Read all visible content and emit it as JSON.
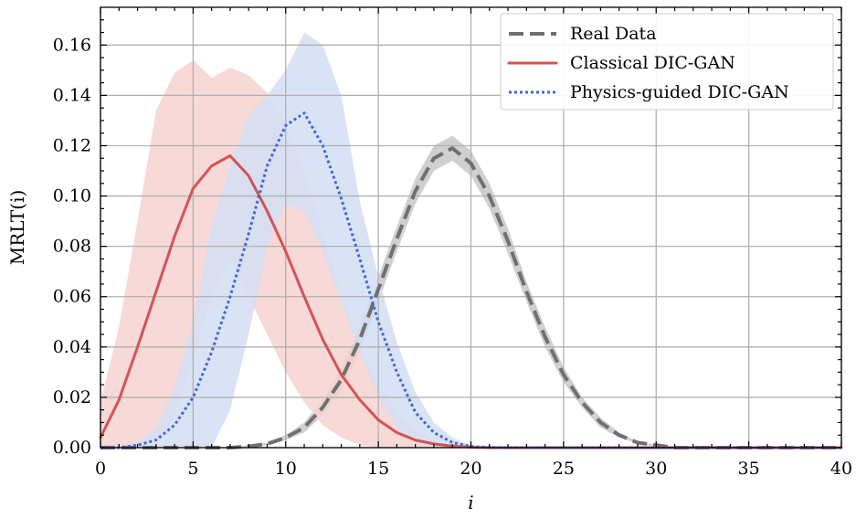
{
  "chart_data": {
    "type": "line",
    "xlabel": "i",
    "ylabel": "MRLT(i)",
    "xlim": [
      0,
      40
    ],
    "ylim": [
      0,
      0.175
    ],
    "xticks": [
      0,
      5,
      10,
      15,
      20,
      25,
      30,
      35,
      40
    ],
    "xtick_labels": [
      "0",
      "5",
      "10",
      "15",
      "20",
      "25",
      "30",
      "35",
      "40"
    ],
    "yticks": [
      0,
      0.02,
      0.04,
      0.06,
      0.08,
      0.1,
      0.12,
      0.14,
      0.16
    ],
    "ytick_labels": [
      "0.00",
      "0.02",
      "0.04",
      "0.06",
      "0.08",
      "0.10",
      "0.12",
      "0.14",
      "0.16"
    ],
    "grid": true,
    "legend_position": "top-right",
    "x": [
      0,
      1,
      2,
      3,
      4,
      5,
      6,
      7,
      8,
      9,
      10,
      11,
      12,
      13,
      14,
      15,
      16,
      17,
      18,
      19,
      20,
      21,
      22,
      23,
      24,
      25,
      26,
      27,
      28,
      29,
      30,
      31,
      32,
      33,
      34,
      35,
      36,
      37,
      38,
      39,
      40
    ],
    "series": [
      {
        "name": "Real Data",
        "color": "#707070",
        "style": "dashed",
        "band_color": "#c8c8c8",
        "values": [
          0,
          0,
          0,
          0,
          0,
          0,
          0,
          0,
          0.0005,
          0.0015,
          0.004,
          0.008,
          0.016,
          0.027,
          0.043,
          0.063,
          0.083,
          0.102,
          0.115,
          0.119,
          0.113,
          0.1,
          0.082,
          0.062,
          0.044,
          0.029,
          0.018,
          0.01,
          0.005,
          0.002,
          0.001,
          0,
          0,
          0,
          0,
          0,
          0,
          0,
          0,
          0,
          0
        ],
        "lower": [
          0,
          0,
          0,
          0,
          0,
          0,
          0,
          0,
          0.0003,
          0.001,
          0.003,
          0.006,
          0.013,
          0.023,
          0.038,
          0.058,
          0.078,
          0.097,
          0.11,
          0.114,
          0.108,
          0.095,
          0.077,
          0.058,
          0.04,
          0.026,
          0.016,
          0.008,
          0.004,
          0.0015,
          0.0005,
          0,
          0,
          0,
          0,
          0,
          0,
          0,
          0,
          0,
          0
        ],
        "upper": [
          0,
          0,
          0,
          0,
          0,
          0,
          0,
          0,
          0.001,
          0.002,
          0.005,
          0.01,
          0.019,
          0.031,
          0.048,
          0.068,
          0.088,
          0.107,
          0.12,
          0.124,
          0.118,
          0.105,
          0.087,
          0.066,
          0.048,
          0.032,
          0.02,
          0.012,
          0.006,
          0.0025,
          0.0012,
          0,
          0,
          0,
          0,
          0,
          0,
          0,
          0,
          0,
          0
        ]
      },
      {
        "name": "Classical DIC-GAN",
        "color": "#d25454",
        "style": "solid",
        "band_color": "#f6d2d0",
        "values": [
          0.004,
          0.019,
          0.04,
          0.062,
          0.084,
          0.103,
          0.112,
          0.116,
          0.108,
          0.094,
          0.078,
          0.06,
          0.043,
          0.029,
          0.019,
          0.011,
          0.006,
          0.003,
          0.0015,
          0.0006,
          0.0002,
          0,
          0,
          0,
          0,
          0,
          0,
          0,
          0,
          0,
          0,
          0,
          0,
          0,
          0,
          0,
          0,
          0,
          0,
          0,
          0
        ],
        "lower": [
          0,
          0,
          0,
          0.003,
          0.012,
          0.035,
          0.06,
          0.075,
          0.06,
          0.045,
          0.03,
          0.018,
          0.009,
          0.004,
          0.001,
          0,
          0,
          0,
          0,
          0,
          0,
          0,
          0,
          0,
          0,
          0,
          0,
          0,
          0,
          0,
          0,
          0,
          0,
          0,
          0,
          0,
          0,
          0,
          0,
          0,
          0
        ],
        "upper": [
          0.018,
          0.048,
          0.09,
          0.134,
          0.149,
          0.154,
          0.147,
          0.151,
          0.148,
          0.141,
          0.128,
          0.11,
          0.085,
          0.06,
          0.04,
          0.025,
          0.014,
          0.007,
          0.003,
          0.001,
          0.0003,
          0,
          0,
          0,
          0,
          0,
          0,
          0,
          0,
          0,
          0,
          0,
          0,
          0,
          0,
          0,
          0,
          0,
          0,
          0,
          0
        ]
      },
      {
        "name": "Physics-guided DIC-GAN",
        "color": "#4169d1",
        "style": "dotted",
        "band_color": "#d3def4",
        "values": [
          0,
          0,
          0.001,
          0.003,
          0.009,
          0.02,
          0.038,
          0.06,
          0.085,
          0.112,
          0.128,
          0.133,
          0.12,
          0.099,
          0.075,
          0.05,
          0.03,
          0.014,
          0.006,
          0.002,
          0.0005,
          0.0001,
          0,
          0,
          0,
          0,
          0,
          0,
          0,
          0,
          0,
          0,
          0,
          0,
          0,
          0,
          0,
          0,
          0,
          0,
          0
        ],
        "lower": [
          0,
          0,
          0,
          0,
          0,
          0,
          0,
          0.015,
          0.045,
          0.08,
          0.097,
          0.094,
          0.078,
          0.058,
          0.038,
          0.02,
          0.008,
          0.002,
          0,
          0,
          0,
          0,
          0,
          0,
          0,
          0,
          0,
          0,
          0,
          0,
          0,
          0,
          0,
          0,
          0,
          0,
          0,
          0,
          0,
          0,
          0
        ],
        "upper": [
          0,
          0,
          0.002,
          0.008,
          0.024,
          0.05,
          0.088,
          0.112,
          0.132,
          0.14,
          0.15,
          0.165,
          0.16,
          0.14,
          0.098,
          0.068,
          0.042,
          0.022,
          0.01,
          0.004,
          0.001,
          0.0002,
          0,
          0,
          0,
          0,
          0,
          0,
          0,
          0,
          0,
          0,
          0,
          0,
          0,
          0,
          0,
          0,
          0,
          0,
          0
        ]
      }
    ]
  }
}
